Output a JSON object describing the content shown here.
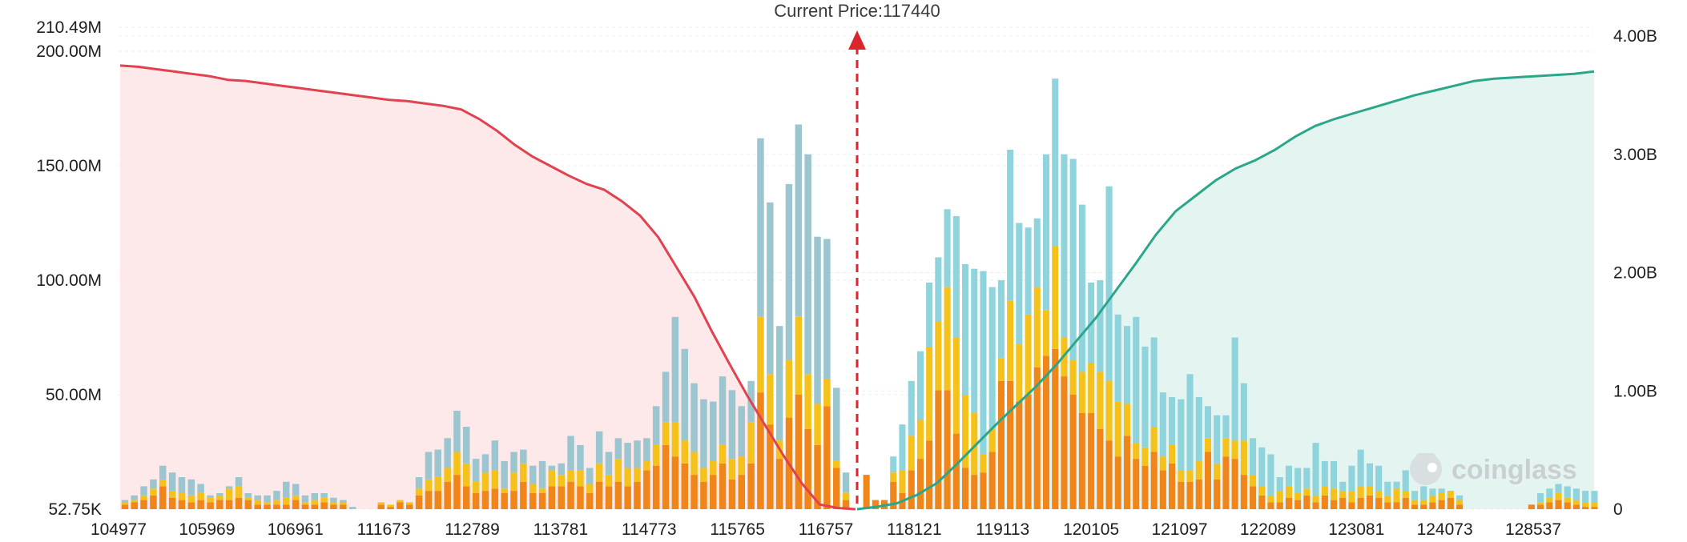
{
  "chart_data": {
    "type": "bar",
    "title": "",
    "current_price_label": "Current Price:117440",
    "current_price": 117440,
    "watermark": "coinglass",
    "x_tick_labels": [
      "104977",
      "105969",
      "106961",
      "111673",
      "112789",
      "113781",
      "114773",
      "115765",
      "116757",
      "118121",
      "119113",
      "120105",
      "121097",
      "122089",
      "123081",
      "124073",
      "128537"
    ],
    "y_left": {
      "tick_labels": [
        "52.75K",
        "50.00M",
        "100.00M",
        "150.00M",
        "200.00M",
        "210.49M"
      ],
      "range": [
        0,
        210490000
      ]
    },
    "y_right": {
      "tick_labels": [
        "0",
        "1.00B",
        "2.00B",
        "3.00B",
        "4.00B"
      ],
      "range": [
        0,
        4000000000
      ]
    },
    "bar_colors": {
      "base": "#f08519",
      "mid": "#f4c21a",
      "top": "#8fd4dc",
      "top_left": "#9cc6cf"
    },
    "series_values_millions": {
      "bars_left": [
        {
          "base": 2,
          "mid": 1,
          "top": 1
        },
        {
          "base": 3,
          "mid": 1,
          "top": 2
        },
        {
          "base": 4,
          "mid": 2,
          "top": 4
        },
        {
          "base": 6,
          "mid": 3,
          "top": 4
        },
        {
          "base": 10,
          "mid": 3,
          "top": 6
        },
        {
          "base": 5,
          "mid": 3,
          "top": 8
        },
        {
          "base": 4,
          "mid": 3,
          "top": 7
        },
        {
          "base": 3,
          "mid": 3,
          "top": 7
        },
        {
          "base": 4,
          "mid": 3,
          "top": 4
        },
        {
          "base": 3,
          "mid": 2,
          "top": 1
        },
        {
          "base": 4,
          "mid": 2,
          "top": 1
        },
        {
          "base": 4,
          "mid": 5,
          "top": 1
        },
        {
          "base": 5,
          "mid": 5,
          "top": 4
        },
        {
          "base": 4,
          "mid": 1,
          "top": 2
        },
        {
          "base": 2,
          "mid": 2,
          "top": 2
        },
        {
          "base": 2,
          "mid": 1,
          "top": 3
        },
        {
          "base": 2,
          "mid": 2,
          "top": 4
        },
        {
          "base": 2,
          "mid": 3,
          "top": 7
        },
        {
          "base": 4,
          "mid": 2,
          "top": 5
        },
        {
          "base": 2,
          "mid": 1,
          "top": 3
        },
        {
          "base": 2,
          "mid": 2,
          "top": 3
        },
        {
          "base": 3,
          "mid": 2,
          "top": 2
        },
        {
          "base": 2,
          "mid": 1,
          "top": 2
        },
        {
          "base": 2,
          "mid": 1,
          "top": 1
        },
        {
          "base": 0,
          "mid": 0,
          "top": 1
        },
        {
          "base": 0,
          "mid": 0,
          "top": 0
        },
        {
          "base": 0,
          "mid": 0,
          "top": 0
        },
        {
          "base": 2,
          "mid": 1,
          "top": 0
        },
        {
          "base": 1,
          "mid": 1,
          "top": 0
        },
        {
          "base": 3,
          "mid": 1,
          "top": 0
        },
        {
          "base": 2,
          "mid": 1,
          "top": 0
        },
        {
          "base": 6,
          "mid": 3,
          "top": 5
        },
        {
          "base": 8,
          "mid": 5,
          "top": 12
        },
        {
          "base": 8,
          "mid": 6,
          "top": 12
        },
        {
          "base": 12,
          "mid": 6,
          "top": 13
        },
        {
          "base": 15,
          "mid": 10,
          "top": 18
        },
        {
          "base": 10,
          "mid": 10,
          "top": 16
        },
        {
          "base": 7,
          "mid": 5,
          "top": 10
        },
        {
          "base": 8,
          "mid": 8,
          "top": 8
        },
        {
          "base": 9,
          "mid": 8,
          "top": 13
        },
        {
          "base": 7,
          "mid": 2,
          "top": 12
        },
        {
          "base": 8,
          "mid": 8,
          "top": 9
        },
        {
          "base": 12,
          "mid": 8,
          "top": 6
        },
        {
          "base": 7,
          "mid": 4,
          "top": 8
        },
        {
          "base": 7,
          "mid": 2,
          "top": 12
        },
        {
          "base": 10,
          "mid": 7,
          "top": 2
        },
        {
          "base": 10,
          "mid": 5,
          "top": 5
        },
        {
          "base": 12,
          "mid": 5,
          "top": 15
        },
        {
          "base": 10,
          "mid": 7,
          "top": 11
        },
        {
          "base": 7,
          "mid": 4,
          "top": 7
        },
        {
          "base": 12,
          "mid": 8,
          "top": 14
        },
        {
          "base": 10,
          "mid": 5,
          "top": 10
        },
        {
          "base": 12,
          "mid": 10,
          "top": 9
        },
        {
          "base": 10,
          "mid": 8,
          "top": 11
        },
        {
          "base": 12,
          "mid": 6,
          "top": 12
        },
        {
          "base": 17,
          "mid": 4,
          "top": 10
        },
        {
          "base": 19,
          "mid": 9,
          "top": 17
        },
        {
          "base": 28,
          "mid": 10,
          "top": 22
        },
        {
          "base": 23,
          "mid": 15,
          "top": 46
        },
        {
          "base": 20,
          "mid": 10,
          "top": 40
        },
        {
          "base": 15,
          "mid": 10,
          "top": 30
        },
        {
          "base": 12,
          "mid": 6,
          "top": 30
        },
        {
          "base": 15,
          "mid": 6,
          "top": 26
        },
        {
          "base": 20,
          "mid": 8,
          "top": 30
        },
        {
          "base": 13,
          "mid": 9,
          "top": 30
        },
        {
          "base": 15,
          "mid": 8,
          "top": 22
        },
        {
          "base": 20,
          "mid": 18,
          "top": 18
        },
        {
          "base": 51,
          "mid": 33,
          "top": 78
        },
        {
          "base": 37,
          "mid": 22,
          "top": 75
        },
        {
          "base": 22,
          "mid": 8,
          "top": 50
        },
        {
          "base": 40,
          "mid": 25,
          "top": 77
        },
        {
          "base": 50,
          "mid": 34,
          "top": 84
        },
        {
          "base": 35,
          "mid": 24,
          "top": 96
        },
        {
          "base": 28,
          "mid": 18,
          "top": 73
        },
        {
          "base": 45,
          "mid": 12,
          "top": 61
        },
        {
          "base": 18,
          "mid": 3,
          "top": 32
        },
        {
          "base": 4,
          "mid": 3,
          "top": 9
        }
      ],
      "bars_right": [
        {
          "base": 15,
          "mid": 0,
          "top": 0
        },
        {
          "base": 4,
          "mid": 0,
          "top": 0
        },
        {
          "base": 4,
          "mid": 0,
          "top": 0
        },
        {
          "base": 12,
          "mid": 4,
          "top": 7
        },
        {
          "base": 7,
          "mid": 10,
          "top": 20
        },
        {
          "base": 17,
          "mid": 15,
          "top": 24
        },
        {
          "base": 22,
          "mid": 17,
          "top": 30
        },
        {
          "base": 30,
          "mid": 41,
          "top": 28
        },
        {
          "base": 52,
          "mid": 30,
          "top": 28
        },
        {
          "base": 52,
          "mid": 45,
          "top": 34
        },
        {
          "base": 33,
          "mid": 42,
          "top": 53
        },
        {
          "base": 18,
          "mid": 32,
          "top": 57
        },
        {
          "base": 15,
          "mid": 27,
          "top": 63
        },
        {
          "base": 16,
          "mid": 8,
          "top": 80
        },
        {
          "base": 25,
          "mid": 10,
          "top": 62
        },
        {
          "base": 56,
          "mid": 10,
          "top": 34
        },
        {
          "base": 56,
          "mid": 35,
          "top": 66
        },
        {
          "base": 47,
          "mid": 25,
          "top": 53
        },
        {
          "base": 50,
          "mid": 35,
          "top": 38
        },
        {
          "base": 62,
          "mid": 35,
          "top": 30
        },
        {
          "base": 67,
          "mid": 20,
          "top": 68
        },
        {
          "base": 70,
          "mid": 45,
          "top": 73
        },
        {
          "base": 58,
          "mid": 17,
          "top": 80
        },
        {
          "base": 50,
          "mid": 15,
          "top": 88
        },
        {
          "base": 42,
          "mid": 18,
          "top": 73
        },
        {
          "base": 42,
          "mid": 22,
          "top": 35
        },
        {
          "base": 35,
          "mid": 25,
          "top": 40
        },
        {
          "base": 30,
          "mid": 26,
          "top": 85
        },
        {
          "base": 23,
          "mid": 24,
          "top": 38
        },
        {
          "base": 32,
          "mid": 14,
          "top": 34
        },
        {
          "base": 22,
          "mid": 7,
          "top": 55
        },
        {
          "base": 19,
          "mid": 8,
          "top": 44
        },
        {
          "base": 25,
          "mid": 11,
          "top": 39
        },
        {
          "base": 17,
          "mid": 6,
          "top": 28
        },
        {
          "base": 20,
          "mid": 8,
          "top": 21
        },
        {
          "base": 12,
          "mid": 5,
          "top": 31
        },
        {
          "base": 12,
          "mid": 5,
          "top": 42
        },
        {
          "base": 13,
          "mid": 8,
          "top": 28
        },
        {
          "base": 25,
          "mid": 6,
          "top": 14
        },
        {
          "base": 13,
          "mid": 7,
          "top": 21
        },
        {
          "base": 23,
          "mid": 8,
          "top": 10
        },
        {
          "base": 22,
          "mid": 8,
          "top": 45
        },
        {
          "base": 15,
          "mid": 15,
          "top": 25
        },
        {
          "base": 10,
          "mid": 5,
          "top": 16
        },
        {
          "base": 6,
          "mid": 4,
          "top": 17
        },
        {
          "base": 3,
          "mid": 3,
          "top": 18
        },
        {
          "base": 3,
          "mid": 5,
          "top": 6
        },
        {
          "base": 5,
          "mid": 5,
          "top": 9
        },
        {
          "base": 4,
          "mid": 3,
          "top": 11
        },
        {
          "base": 6,
          "mid": 3,
          "top": 9
        },
        {
          "base": 3,
          "mid": 3,
          "top": 23
        },
        {
          "base": 6,
          "mid": 4,
          "top": 11
        },
        {
          "base": 4,
          "mid": 5,
          "top": 12
        },
        {
          "base": 5,
          "mid": 3,
          "top": 4
        },
        {
          "base": 3,
          "mid": 5,
          "top": 11
        },
        {
          "base": 5,
          "mid": 5,
          "top": 16
        },
        {
          "base": 6,
          "mid": 4,
          "top": 10
        },
        {
          "base": 5,
          "mid": 3,
          "top": 11
        },
        {
          "base": 3,
          "mid": 3,
          "top": 6
        },
        {
          "base": 3,
          "mid": 6,
          "top": 3
        },
        {
          "base": 5,
          "mid": 3,
          "top": 9
        },
        {
          "base": 2,
          "mid": 2,
          "top": 4
        },
        {
          "base": 2,
          "mid": 2,
          "top": 6
        },
        {
          "base": 3,
          "mid": 3,
          "top": 3
        },
        {
          "base": 4,
          "mid": 3,
          "top": 2
        },
        {
          "base": 5,
          "mid": 3,
          "top": 0
        },
        {
          "base": 2,
          "mid": 2,
          "top": 2
        },
        {
          "base": 0,
          "mid": 0,
          "top": 0
        },
        {
          "base": 0,
          "mid": 0,
          "top": 0
        },
        {
          "base": 0,
          "mid": 0,
          "top": 0
        },
        {
          "base": 0,
          "mid": 0,
          "top": 0
        },
        {
          "base": 0,
          "mid": 0,
          "top": 0
        },
        {
          "base": 0,
          "mid": 0,
          "top": 0
        },
        {
          "base": 0,
          "mid": 0,
          "top": 0
        },
        {
          "base": 2,
          "mid": 0,
          "top": 0
        },
        {
          "base": 2,
          "mid": 1,
          "top": 4
        },
        {
          "base": 3,
          "mid": 2,
          "top": 4
        },
        {
          "base": 4,
          "mid": 3,
          "top": 4
        },
        {
          "base": 3,
          "mid": 2,
          "top": 5
        },
        {
          "base": 2,
          "mid": 2,
          "top": 5
        },
        {
          "base": 1,
          "mid": 2,
          "top": 5
        },
        {
          "base": 1,
          "mid": 2,
          "top": 5
        }
      ]
    },
    "cumulative_short_billions": [
      3.75,
      3.74,
      3.72,
      3.7,
      3.68,
      3.66,
      3.63,
      3.62,
      3.6,
      3.58,
      3.56,
      3.54,
      3.52,
      3.5,
      3.48,
      3.46,
      3.45,
      3.43,
      3.41,
      3.38,
      3.3,
      3.2,
      3.08,
      2.98,
      2.9,
      2.82,
      2.75,
      2.7,
      2.6,
      2.48,
      2.3,
      2.05,
      1.8,
      1.5,
      1.22,
      0.95,
      0.7,
      0.45,
      0.22,
      0.04,
      0.01,
      0.0
    ],
    "cumulative_long_billions": [
      0.0,
      0.02,
      0.05,
      0.12,
      0.22,
      0.38,
      0.55,
      0.72,
      0.88,
      1.04,
      1.22,
      1.42,
      1.62,
      1.85,
      2.08,
      2.32,
      2.52,
      2.65,
      2.78,
      2.88,
      2.95,
      3.04,
      3.15,
      3.24,
      3.3,
      3.35,
      3.4,
      3.45,
      3.5,
      3.54,
      3.58,
      3.62,
      3.64,
      3.65,
      3.66,
      3.67,
      3.68,
      3.7
    ],
    "line_colors": {
      "short": "#e0424f",
      "long": "#2aa78a",
      "short_fill": "#fde8ea",
      "long_fill": "#e4f5f1"
    }
  }
}
